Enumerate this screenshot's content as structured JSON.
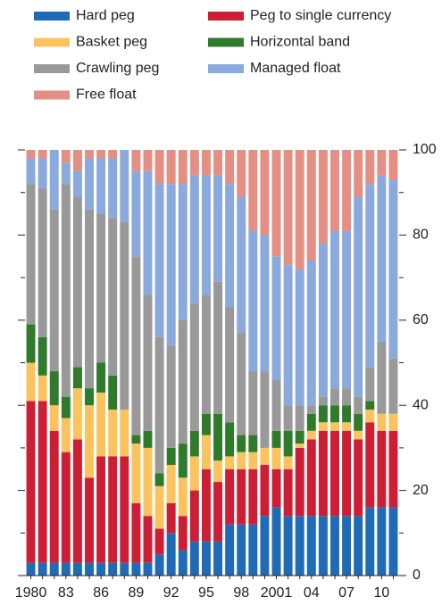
{
  "chart_data": {
    "type": "stacked_bar",
    "categories": [
      "1980",
      null,
      null,
      "83",
      null,
      null,
      "86",
      null,
      null,
      "89",
      null,
      null,
      "92",
      null,
      null,
      "95",
      null,
      null,
      "98",
      null,
      null,
      "2001",
      null,
      null,
      "04",
      null,
      null,
      "07",
      null,
      null,
      "10",
      null
    ],
    "ylim": [
      0,
      100
    ],
    "yticks": [
      0,
      20,
      40,
      60,
      80,
      100
    ],
    "series": [
      {
        "name": "Hard peg",
        "color": "#1f6bb5",
        "values": [
          3,
          3,
          3,
          3,
          3,
          3,
          3,
          3,
          3,
          3,
          3,
          5,
          10,
          6,
          8,
          8,
          8,
          12,
          12,
          12,
          14,
          16,
          14,
          14,
          14,
          14,
          14,
          14,
          14,
          16,
          16,
          16
        ]
      },
      {
        "name": "Peg to single currency",
        "color": "#cc1e35",
        "values": [
          38,
          38,
          31,
          26,
          29,
          20,
          25,
          25,
          25,
          14,
          11,
          6,
          7,
          8,
          12,
          17,
          14,
          13,
          13,
          13,
          12,
          9,
          11,
          16,
          18,
          20,
          20,
          20,
          18,
          20,
          18,
          18
        ]
      },
      {
        "name": "Basket peg",
        "color": "#fbc35e",
        "values": [
          9,
          6,
          6,
          8,
          12,
          17,
          15,
          11,
          11,
          14,
          16,
          10,
          9,
          9,
          8,
          8,
          5,
          3,
          4,
          4,
          4,
          5,
          3,
          1,
          2,
          2,
          2,
          2,
          2,
          3,
          4,
          4
        ]
      },
      {
        "name": "Horizontal band",
        "color": "#2f7a2b",
        "values": [
          9,
          9,
          8,
          5,
          5,
          4,
          7,
          8,
          0,
          2,
          4,
          3,
          4,
          8,
          6,
          5,
          11,
          8,
          4,
          4,
          0,
          4,
          6,
          3,
          4,
          4,
          4,
          4,
          4,
          2,
          0,
          0
        ]
      },
      {
        "name": "Crawling peg",
        "color": "#999999",
        "values": [
          33,
          35,
          38,
          50,
          40,
          42,
          35,
          37,
          44,
          42,
          32,
          32,
          24,
          29,
          30,
          28,
          31,
          27,
          24,
          15,
          18,
          12,
          6,
          6,
          2,
          2,
          4,
          4,
          4,
          8,
          17,
          13
        ]
      },
      {
        "name": "Managed float",
        "color": "#8aa9dc",
        "values": [
          6,
          7,
          14,
          5,
          6,
          12,
          13,
          14,
          17,
          20,
          29,
          36,
          38,
          32,
          30,
          28,
          25,
          29,
          32,
          33,
          32,
          29,
          33,
          32,
          34,
          36,
          37,
          37,
          47,
          43,
          39,
          42
        ]
      },
      {
        "name": "Free float",
        "color": "#e48f84",
        "values": [
          2,
          2,
          0,
          3,
          5,
          2,
          2,
          2,
          0,
          5,
          5,
          8,
          8,
          8,
          6,
          6,
          6,
          8,
          11,
          19,
          20,
          25,
          27,
          28,
          26,
          22,
          19,
          19,
          11,
          8,
          6,
          7
        ]
      }
    ]
  }
}
